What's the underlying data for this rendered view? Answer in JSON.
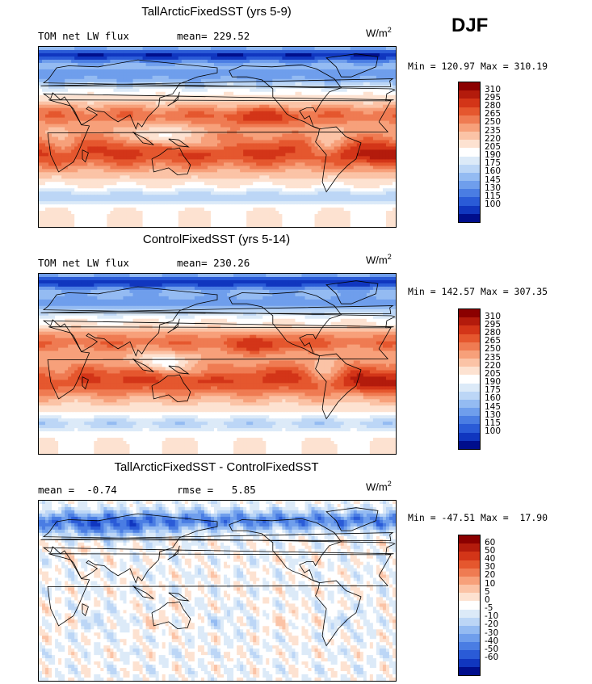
{
  "season": "DJF",
  "palettes": {
    "abs": [
      "#8b0000",
      "#b31b0c",
      "#d33518",
      "#e5572e",
      "#ef7b52",
      "#f7a07a",
      "#fbc3a6",
      "#fde2d1",
      "#ffffff",
      "#dceaf8",
      "#bcd6f6",
      "#94bbf2",
      "#6f9eec",
      "#4a7de3",
      "#2a5bd7",
      "#1036bf",
      "#000e8c"
    ],
    "diff": [
      "#8b0000",
      "#b31b0c",
      "#d33518",
      "#e5572e",
      "#ef7b52",
      "#f7a07a",
      "#fbc3a6",
      "#fde2d1",
      "#ffffff",
      "#dceaf8",
      "#bcd6f6",
      "#94bbf2",
      "#6f9eec",
      "#4a7de3",
      "#2a5bd7",
      "#1036bf",
      "#000e8c"
    ]
  },
  "panels": [
    {
      "title": "TallArcticFixedSST (yrs 5-9)",
      "stat_left": "TOM net LW flux",
      "stat_right": "mean= 229.52",
      "units": "W/m",
      "units_exp": "2",
      "minmax": "Min = 120.97 Max = 310.19",
      "levels": [
        "310",
        "295",
        "280",
        "265",
        "250",
        "235",
        "220",
        "205",
        "190",
        "175",
        "160",
        "145",
        "130",
        "115",
        "100"
      ],
      "palette": "abs",
      "field": "abs1"
    },
    {
      "title": "ControlFixedSST (yrs 5-14)",
      "stat_left": "TOM net LW flux",
      "stat_right": "mean= 230.26",
      "units": "W/m",
      "units_exp": "2",
      "minmax": "Min = 142.57 Max = 307.35",
      "levels": [
        "310",
        "295",
        "280",
        "265",
        "250",
        "235",
        "220",
        "205",
        "190",
        "175",
        "160",
        "145",
        "130",
        "115",
        "100"
      ],
      "palette": "abs",
      "field": "abs2"
    },
    {
      "title": "TallArcticFixedSST - ControlFixedSST",
      "stat_left": "mean =  -0.74",
      "stat_right": "rmse =   5.85",
      "units": "W/m",
      "units_exp": "2",
      "minmax": "Min = -47.51 Max =  17.90",
      "levels": [
        "60",
        "50",
        "40",
        "30",
        "20",
        "10",
        "5",
        "0",
        "-5",
        "-10",
        "-20",
        "-30",
        "-40",
        "-50",
        "-60"
      ],
      "palette": "diff",
      "field": "diff"
    }
  ]
}
